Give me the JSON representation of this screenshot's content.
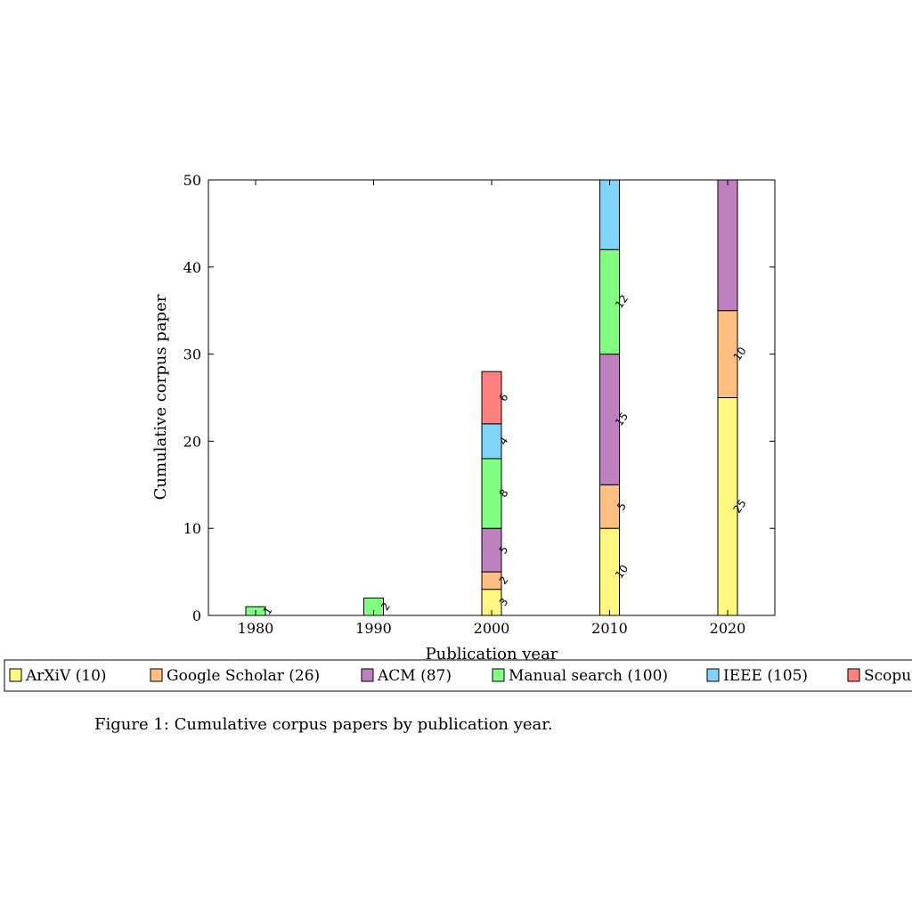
{
  "chart_data": {
    "type": "bar",
    "stacked": true,
    "categories": [
      "1980",
      "1990",
      "2000",
      "2010",
      "2020"
    ],
    "series": [
      {
        "name": "ArXiV (10)",
        "color": "#fff780",
        "values": [
          0,
          0,
          3,
          10,
          25
        ],
        "labels": [
          "",
          "",
          "3",
          "10",
          "25"
        ]
      },
      {
        "name": "Google Scholar (26)",
        "color": "#ffbf80",
        "values": [
          0,
          0,
          2,
          5,
          10
        ],
        "labels": [
          "",
          "",
          "2",
          "5",
          "10"
        ]
      },
      {
        "name": "ACM (87)",
        "color": "#bf80bf",
        "values": [
          0,
          0,
          5,
          15,
          15
        ],
        "labels": [
          "",
          "",
          "5",
          "15",
          ""
        ]
      },
      {
        "name": "Manual search (100)",
        "color": "#80ff80",
        "values": [
          1,
          2,
          8,
          12,
          0
        ],
        "labels": [
          "1",
          "2",
          "8",
          "12",
          ""
        ]
      },
      {
        "name": "IEEE (105)",
        "color": "#80d4f7",
        "values": [
          0,
          0,
          4,
          8,
          0
        ],
        "labels": [
          "",
          "",
          "4",
          "",
          ""
        ]
      },
      {
        "name": "Scopus",
        "color": "#ff8080",
        "values": [
          0,
          0,
          6,
          0,
          0
        ],
        "labels": [
          "",
          "",
          "6",
          "",
          ""
        ]
      }
    ],
    "xlabel": "Publication year",
    "ylabel": "Cumulative corpus paper",
    "ylim": [
      0,
      50
    ],
    "yticks": [
      0,
      10,
      20,
      30,
      40,
      50
    ],
    "grid": false,
    "legend_position": "bottom"
  },
  "caption": "Figure 1: Cumulative corpus papers by publication year."
}
